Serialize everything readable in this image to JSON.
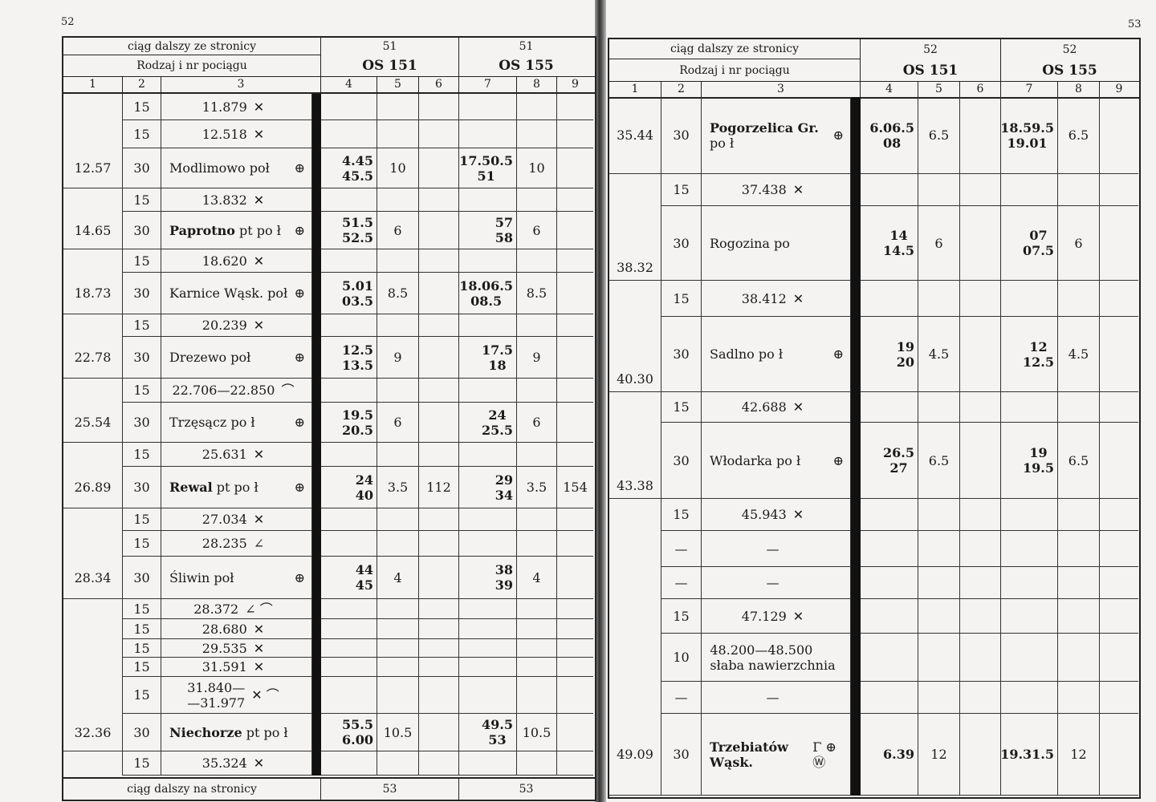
{
  "left_page": {
    "page_number": "52",
    "header": {
      "continued_from": "ciąg dalszy ze stronicy",
      "train_label": "Rodzaj i nr pociągu",
      "col_numbers": [
        "1",
        "2",
        "3",
        "4",
        "5",
        "6",
        "7",
        "8",
        "9"
      ],
      "trains": [
        {
          "from_page": "51",
          "name": "OS 151"
        },
        {
          "from_page": "51",
          "name": "OS 155"
        }
      ]
    },
    "rows": [
      {
        "km": "",
        "speed": "15",
        "name": "11.879",
        "sym": "✕",
        "t1": "",
        "c5": "",
        "c6": "",
        "t2": "",
        "c8": "",
        "c9": ""
      },
      {
        "km": "",
        "speed": "15",
        "name": "12.518",
        "sym": "✕",
        "t1": "",
        "c5": "",
        "c6": "",
        "t2": "",
        "c8": "",
        "c9": ""
      },
      {
        "km": "12.57",
        "speed": "30",
        "name": "Modlimowo poł",
        "sym": "⊕",
        "t1": "4.45\n45.5",
        "c5": "10",
        "c6": "",
        "t2": "17.50.5\n51",
        "c8": "10",
        "c9": ""
      },
      {
        "km": "",
        "speed": "15",
        "name": "13.832",
        "sym": "✕",
        "t1": "",
        "c5": "",
        "c6": "",
        "t2": "",
        "c8": "",
        "c9": ""
      },
      {
        "km": "14.65",
        "speed": "30",
        "name": "Paprotno pt po ł",
        "bold_part": "Paprotno",
        "sym": "⊕",
        "t1": "51.5\n52.5",
        "c5": "6",
        "c6": "",
        "t2": "57\n58",
        "c8": "6",
        "c9": ""
      },
      {
        "km": "",
        "speed": "15",
        "name": "18.620",
        "sym": "✕",
        "t1": "",
        "c5": "",
        "c6": "",
        "t2": "",
        "c8": "",
        "c9": ""
      },
      {
        "km": "18.73",
        "speed": "30",
        "name": "Karnice Wąsk. poł",
        "sym": "⊕",
        "t1": "5.01\n03.5",
        "c5": "8.5",
        "c6": "",
        "t2": "18.06.5\n08.5",
        "c8": "8.5",
        "c9": ""
      },
      {
        "km": "",
        "speed": "15",
        "name": "20.239",
        "sym": "✕",
        "t1": "",
        "c5": "",
        "c6": "",
        "t2": "",
        "c8": "",
        "c9": ""
      },
      {
        "km": "22.78",
        "speed": "30",
        "name": "Drezewo poł",
        "sym": "⊕",
        "t1": "12.5\n13.5",
        "c5": "9",
        "c6": "",
        "t2": "17.5\n18",
        "c8": "9",
        "c9": ""
      },
      {
        "km": "",
        "speed": "15",
        "name": "22.706—22.850",
        "sym": "⌒",
        "t1": "",
        "c5": "",
        "c6": "",
        "t2": "",
        "c8": "",
        "c9": ""
      },
      {
        "km": "25.54",
        "speed": "30",
        "name": "Trzęsącz po ł",
        "sym": "⊕",
        "t1": "19.5\n20.5",
        "c5": "6",
        "c6": "",
        "t2": "24\n25.5",
        "c8": "6",
        "c9": ""
      },
      {
        "km": "",
        "speed": "15",
        "name": "25.631",
        "sym": "✕",
        "t1": "",
        "c5": "",
        "c6": "",
        "t2": "",
        "c8": "",
        "c9": ""
      },
      {
        "km": "26.89",
        "speed": "30",
        "name": "Rewal pt po ł",
        "bold_part": "Rewal",
        "sym": "⊕",
        "t1": "24\n40",
        "c5": "3.5",
        "c6": "112",
        "t2": "29\n34",
        "c8": "3.5",
        "c9": "154"
      },
      {
        "km": "",
        "speed": "15",
        "name": "27.034",
        "sym": "✕",
        "t1": "",
        "c5": "",
        "c6": "",
        "t2": "",
        "c8": "",
        "c9": ""
      },
      {
        "km": "",
        "speed": "15",
        "name": "28.235",
        "sym": "∠",
        "t1": "",
        "c5": "",
        "c6": "",
        "t2": "",
        "c8": "",
        "c9": ""
      },
      {
        "km": "28.34",
        "speed": "30",
        "name": "Śliwin poł",
        "sym": "⊕",
        "t1": "44\n45",
        "c5": "4",
        "c6": "",
        "t2": "38\n39",
        "c8": "4",
        "c9": ""
      },
      {
        "km": "",
        "speed": "15",
        "name": "28.372",
        "sym": "∠ ⌒",
        "t1": "",
        "c5": "",
        "c6": "",
        "t2": "",
        "c8": "",
        "c9": ""
      },
      {
        "km": "",
        "speed": "15",
        "name": "28.680",
        "sym": "✕",
        "t1": "",
        "c5": "",
        "c6": "",
        "t2": "",
        "c8": "",
        "c9": ""
      },
      {
        "km": "",
        "speed": "15",
        "name": "29.535",
        "sym": "✕",
        "t1": "",
        "c5": "",
        "c6": "",
        "t2": "",
        "c8": "",
        "c9": ""
      },
      {
        "km": "",
        "speed": "15",
        "name": "31.591",
        "sym": "✕",
        "t1": "",
        "c5": "",
        "c6": "",
        "t2": "",
        "c8": "",
        "c9": ""
      },
      {
        "km": "",
        "speed": "15",
        "name": "31.840—\n—31.977",
        "sym": "✕ ⌒",
        "t1": "",
        "c5": "",
        "c6": "",
        "t2": "",
        "c8": "",
        "c9": ""
      },
      {
        "km": "32.36",
        "speed": "30",
        "name": "Niechorze pt po ł",
        "bold_part": "Niechorze",
        "sym": "",
        "t1": "55.5\n6.00",
        "c5": "10.5",
        "c6": "",
        "t2": "49.5\n53",
        "c8": "10.5",
        "c9": ""
      },
      {
        "km": "",
        "speed": "15",
        "name": "35.324",
        "sym": "✕",
        "t1": "",
        "c5": "",
        "c6": "",
        "t2": "",
        "c8": "",
        "c9": ""
      }
    ],
    "footer": {
      "continued_on": "ciąg dalszy na stronicy",
      "pages": [
        "53",
        "53"
      ]
    }
  },
  "right_page": {
    "page_number": "53",
    "header": {
      "continued_from": "ciąg dalszy ze stronicy",
      "train_label": "Rodzaj i nr pociągu",
      "col_numbers": [
        "1",
        "2",
        "3",
        "4",
        "5",
        "6",
        "7",
        "8",
        "9"
      ],
      "trains": [
        {
          "from_page": "52",
          "name": "OS 151"
        },
        {
          "from_page": "52",
          "name": "OS 155"
        }
      ]
    },
    "rows": [
      {
        "km": "35.44",
        "speed": "30",
        "name": "Pogorzelica Gr. po ł",
        "bold_part": "Pogorzelica Gr.",
        "sym": "⊕",
        "t1": "6.06.5\n08",
        "c5": "6.5",
        "c6": "",
        "t2": "18.59.5\n19.01",
        "c8": "6.5",
        "c9": ""
      },
      {
        "km": "",
        "speed": "15",
        "name": "37.438",
        "sym": "✕",
        "t1": "",
        "c5": "",
        "c6": "",
        "t2": "",
        "c8": "",
        "c9": ""
      },
      {
        "km": "38.32",
        "speed": "30",
        "name": "Rogozina po",
        "sym": "",
        "t1": "14\n14.5",
        "c5": "6",
        "c6": "",
        "t2": "07\n07.5",
        "c8": "6",
        "c9": ""
      },
      {
        "km": "",
        "speed": "15",
        "name": "38.412",
        "sym": "✕",
        "t1": "",
        "c5": "",
        "c6": "",
        "t2": "",
        "c8": "",
        "c9": ""
      },
      {
        "km": "40.30",
        "speed": "30",
        "name": "Sadlno po ł",
        "sym": "⊕",
        "t1": "19\n20",
        "c5": "4.5",
        "c6": "",
        "t2": "12\n12.5",
        "c8": "4.5",
        "c9": ""
      },
      {
        "km": "",
        "speed": "15",
        "name": "42.688",
        "sym": "✕",
        "t1": "",
        "c5": "",
        "c6": "",
        "t2": "",
        "c8": "",
        "c9": ""
      },
      {
        "km": "43.38",
        "speed": "30",
        "name": "Włodarka po ł",
        "sym": "⊕",
        "t1": "26.5\n27",
        "c5": "6.5",
        "c6": "",
        "t2": "19\n19.5",
        "c8": "6.5",
        "c9": ""
      },
      {
        "km": "",
        "speed": "15",
        "name": "45.943",
        "sym": "✕",
        "t1": "",
        "c5": "",
        "c6": "",
        "t2": "",
        "c8": "",
        "c9": ""
      },
      {
        "km": "",
        "speed": "—",
        "name": "—",
        "sym": "",
        "t1": "",
        "c5": "",
        "c6": "",
        "t2": "",
        "c8": "",
        "c9": ""
      },
      {
        "km": "",
        "speed": "—",
        "name": "—",
        "sym": "",
        "t1": "",
        "c5": "",
        "c6": "",
        "t2": "",
        "c8": "",
        "c9": ""
      },
      {
        "km": "",
        "speed": "15",
        "name": "47.129",
        "sym": "✕",
        "t1": "",
        "c5": "",
        "c6": "",
        "t2": "",
        "c8": "",
        "c9": ""
      },
      {
        "km": "",
        "speed": "10",
        "name": "48.200—48.500\nsłaba nawierzchnia",
        "sym": "",
        "t1": "",
        "c5": "",
        "c6": "",
        "t2": "",
        "c8": "",
        "c9": ""
      },
      {
        "km": "",
        "speed": "—",
        "name": "—",
        "sym": "",
        "t1": "",
        "c5": "",
        "c6": "",
        "t2": "",
        "c8": "",
        "c9": ""
      },
      {
        "km": "49.09",
        "speed": "30",
        "name": "Trzebiatów Wąsk.",
        "bold_part": "Trzebiatów Wąsk.",
        "sym": "Γ ⊕ Ⓦ",
        "t1": "6.39",
        "c5": "12",
        "c6": "",
        "t2": "19.31.5",
        "c8": "12",
        "c9": ""
      }
    ]
  },
  "icons": {
    "✕": "level-crossing-icon",
    "⊕": "station-icon",
    "∠": "turnout-icon",
    "⌒": "curve-icon",
    "Ⓦ": "water-icon",
    "Γ": "turntable-icon"
  }
}
